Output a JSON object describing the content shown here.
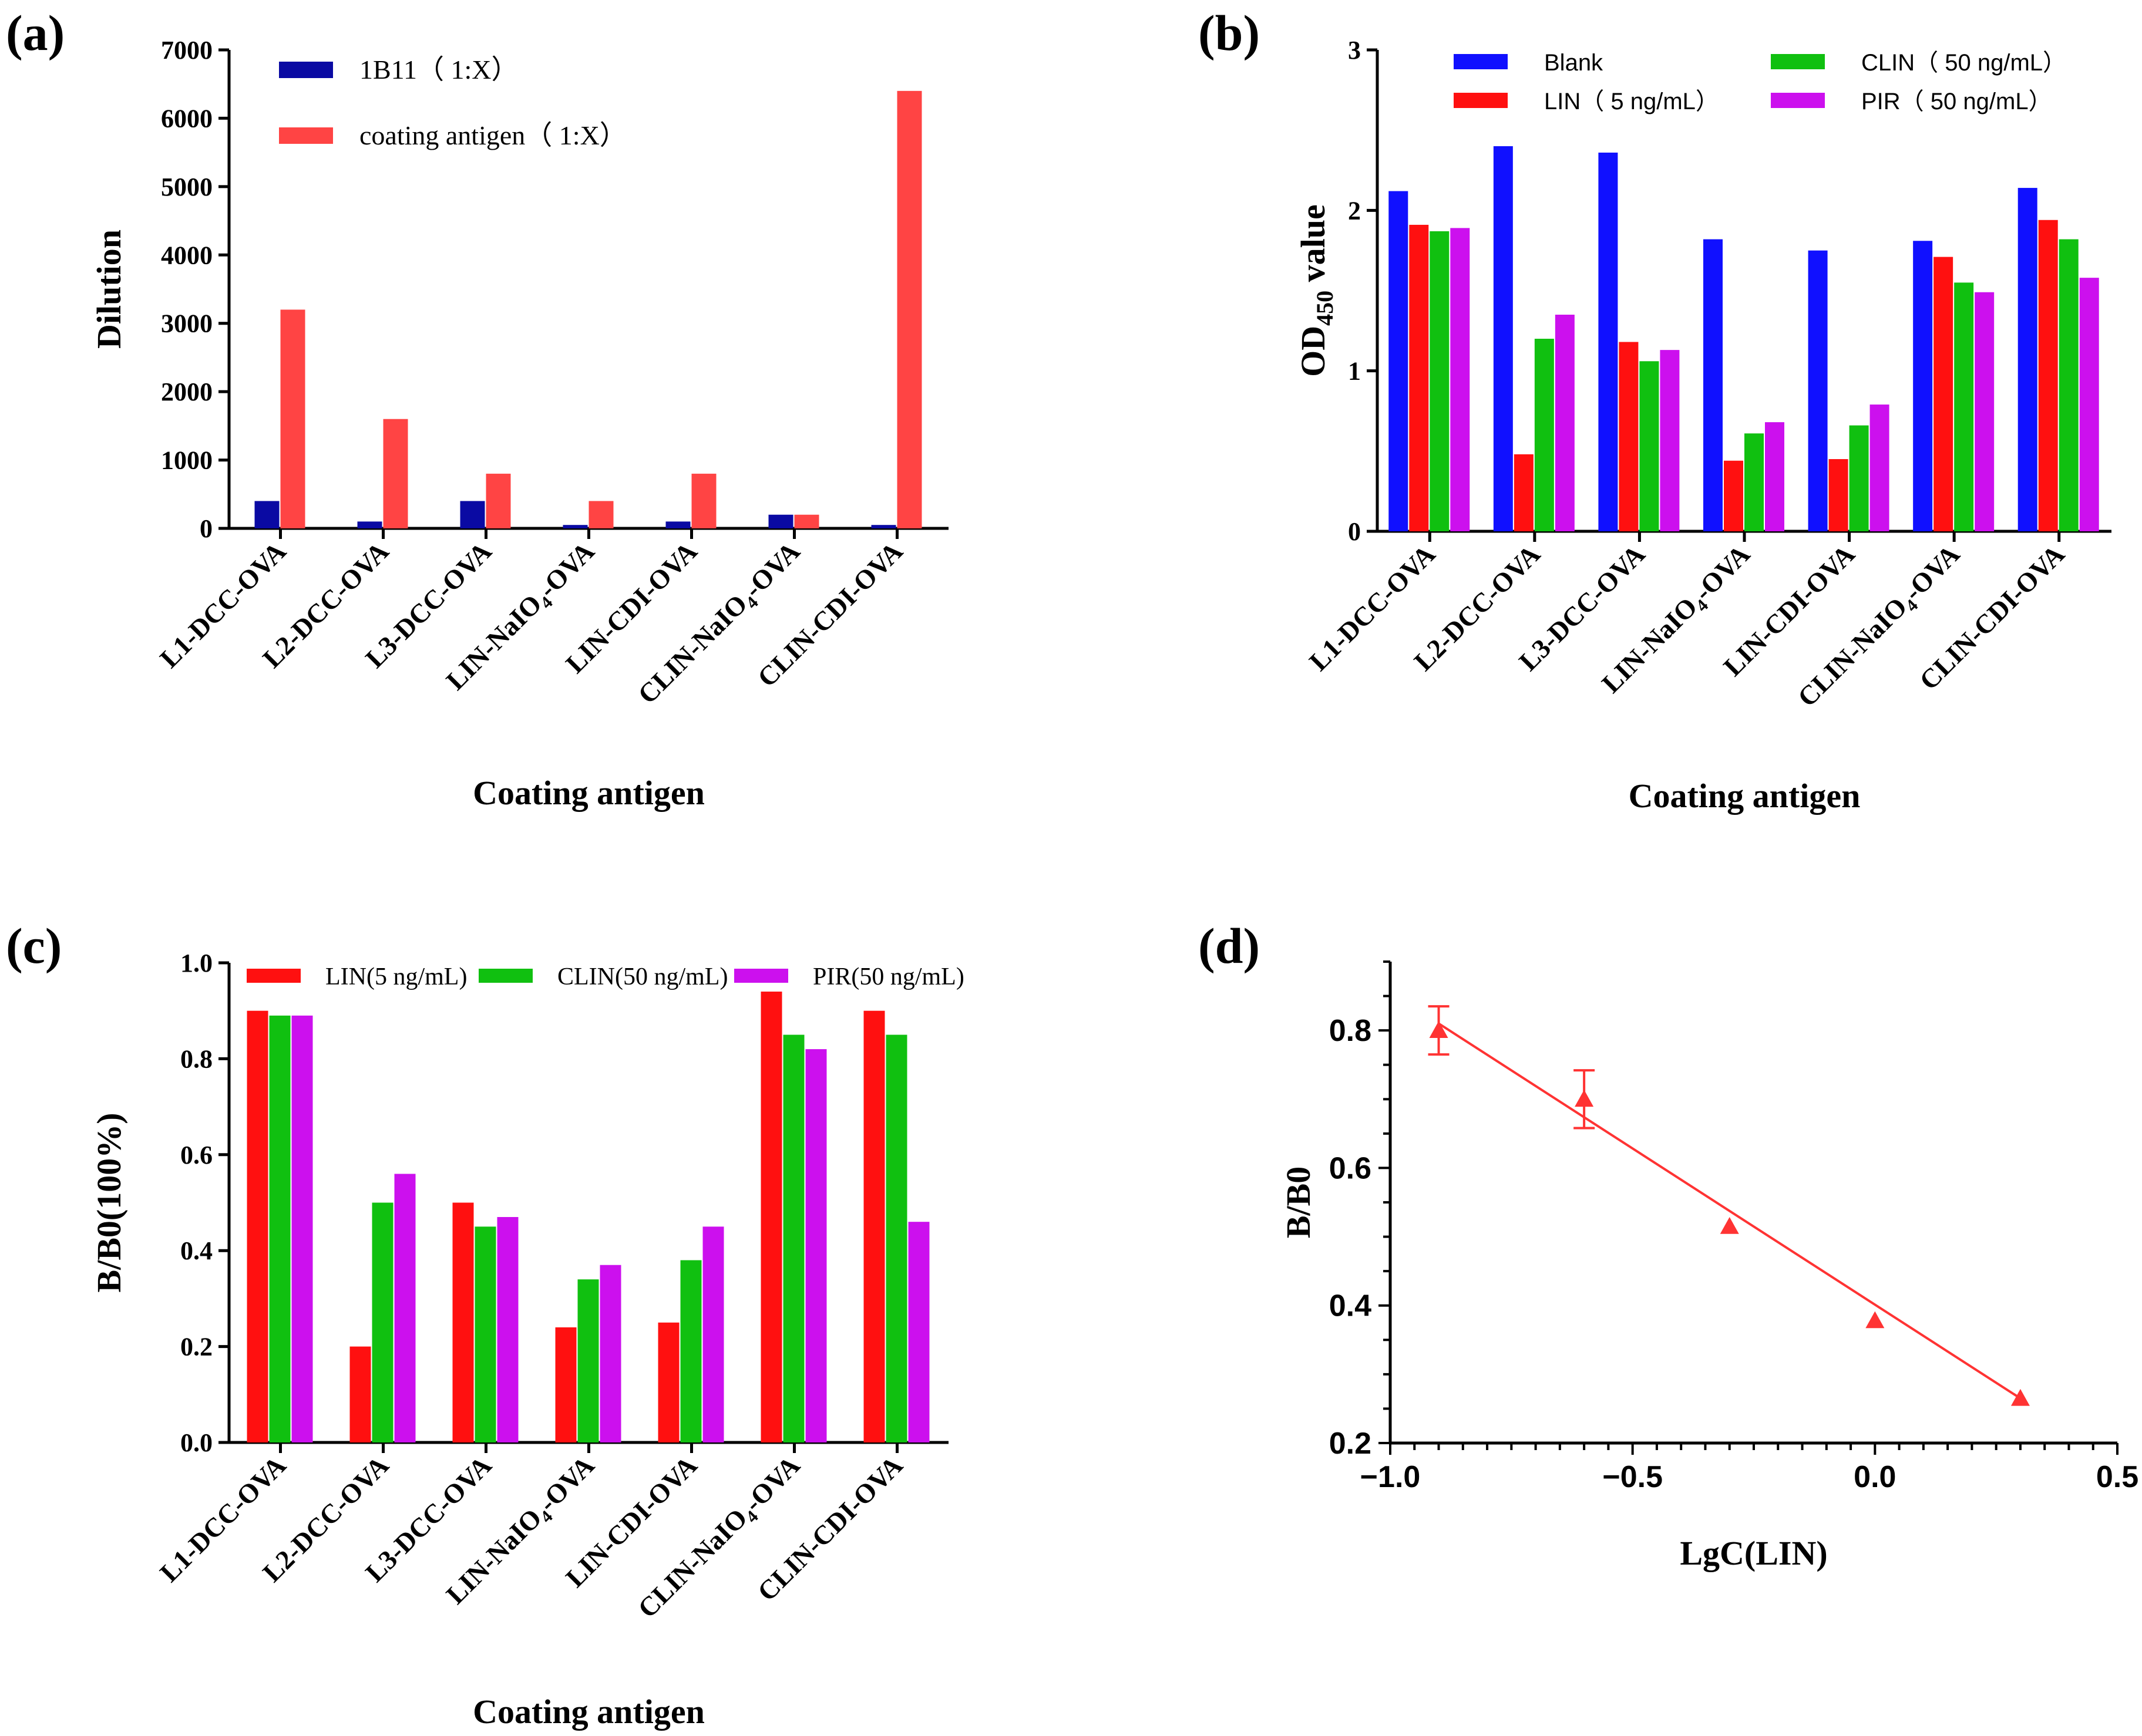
{
  "chart_data": [
    {
      "panel": "(a)",
      "type": "bar",
      "xlabel": "Coating antigen",
      "ylabel": "Dilution",
      "ylim": [
        0,
        7000
      ],
      "yticks": [
        "0",
        "1000",
        "2000",
        "3000",
        "4000",
        "5000",
        "6000",
        "7000"
      ],
      "categories": [
        "L1-DCC-OVA",
        "L2-DCC-OVA",
        "L3-DCC-OVA",
        "LIN-NaIO4-OVA",
        "LIN-CDI-OVA",
        "CLIN-NaIO4-OVA",
        "CLIN-CDI-OVA"
      ],
      "legend_position": "top-left",
      "series": [
        {
          "name": "1B11（ 1:X）",
          "color": "#0a0aa3",
          "values": [
            400,
            100,
            400,
            50,
            100,
            200,
            50
          ]
        },
        {
          "name": "coating antigen（ 1:X）",
          "color": "#ff4444",
          "values": [
            3200,
            1600,
            800,
            400,
            800,
            200,
            6400
          ]
        }
      ]
    },
    {
      "panel": "(b)",
      "type": "bar",
      "xlabel": "Coating antigen",
      "ylabel_main": "OD",
      "ylabel_sub": "450",
      "ylabel_suffix": " value",
      "ylim": [
        0,
        3
      ],
      "yticks": [
        "0",
        "1",
        "2",
        "3"
      ],
      "categories": [
        "L1-DCC-OVA",
        "L2-DCC-OVA",
        "L3-DCC-OVA",
        "LIN-NaIO4-OVA",
        "LIN-CDI-OVA",
        "CLIN-NaIO4-OVA",
        "CLIN-CDI-OVA"
      ],
      "legend_position": "top",
      "series": [
        {
          "name": "Blank",
          "color": "#1010ff",
          "values": [
            2.12,
            2.4,
            2.36,
            1.82,
            1.75,
            1.81,
            2.14
          ]
        },
        {
          "name": "LIN（ 5 ng/mL）",
          "color": "#ff1010",
          "values": [
            1.91,
            0.48,
            1.18,
            0.44,
            0.45,
            1.71,
            1.94
          ]
        },
        {
          "name": "CLIN（ 50 ng/mL）",
          "color": "#10c010",
          "values": [
            1.87,
            1.2,
            1.06,
            0.61,
            0.66,
            1.55,
            1.82
          ]
        },
        {
          "name": "PIR（ 50 ng/mL）",
          "color": "#cc10ee",
          "values": [
            1.89,
            1.35,
            1.13,
            0.68,
            0.79,
            1.49,
            1.58
          ]
        }
      ]
    },
    {
      "panel": "(c)",
      "type": "bar",
      "xlabel": "Coating antigen",
      "ylabel": "B/B0(100%)",
      "ylim": [
        0,
        1.0
      ],
      "yticks": [
        "0.0",
        "0.2",
        "0.4",
        "0.6",
        "0.8",
        "1.0"
      ],
      "categories": [
        "L1-DCC-OVA",
        "L2-DCC-OVA",
        "L3-DCC-OVA",
        "LIN-NaIO4-OVA",
        "LIN-CDI-OVA",
        "CLIN-NaIO4-OVA",
        "CLIN-CDI-OVA"
      ],
      "legend_position": "top",
      "series": [
        {
          "name": "LIN(5 ng/mL)",
          "color": "#ff1010",
          "values": [
            0.9,
            0.2,
            0.5,
            0.24,
            0.25,
            0.94,
            0.9
          ]
        },
        {
          "name": "CLIN(50 ng/mL)",
          "color": "#10c010",
          "values": [
            0.89,
            0.5,
            0.45,
            0.34,
            0.38,
            0.85,
            0.85
          ]
        },
        {
          "name": "PIR(50 ng/mL)",
          "color": "#cc10ee",
          "values": [
            0.89,
            0.56,
            0.47,
            0.37,
            0.45,
            0.82,
            0.46
          ]
        }
      ]
    },
    {
      "panel": "(d)",
      "type": "scatter",
      "xlabel": "LgC(LIN)",
      "ylabel": "B/B0",
      "xlim": [
        -1.0,
        0.5
      ],
      "ylim": [
        0.2,
        0.9
      ],
      "xticks": [
        {
          "v": -1.0,
          "t": "−1.0"
        },
        {
          "v": -0.5,
          "t": "−0.5"
        },
        {
          "v": 0.0,
          "t": "0.0"
        },
        {
          "v": 0.5,
          "t": "0.5"
        }
      ],
      "yticks": [
        {
          "v": 0.2,
          "t": "0.2"
        },
        {
          "v": 0.4,
          "t": "0.4"
        },
        {
          "v": 0.6,
          "t": "0.6"
        },
        {
          "v": 0.8,
          "t": "0.8"
        }
      ],
      "color": "#ff3333",
      "points": [
        {
          "x": -0.9,
          "y": 0.8,
          "err": 0.035
        },
        {
          "x": -0.6,
          "y": 0.7,
          "err": 0.042
        },
        {
          "x": -0.3,
          "y": 0.515,
          "err": 0
        },
        {
          "x": 0.0,
          "y": 0.378,
          "err": 0
        },
        {
          "x": 0.3,
          "y": 0.265,
          "err": 0
        }
      ],
      "fit_line": {
        "x": [
          -0.9,
          0.3
        ],
        "y": [
          0.81,
          0.265
        ]
      }
    }
  ]
}
